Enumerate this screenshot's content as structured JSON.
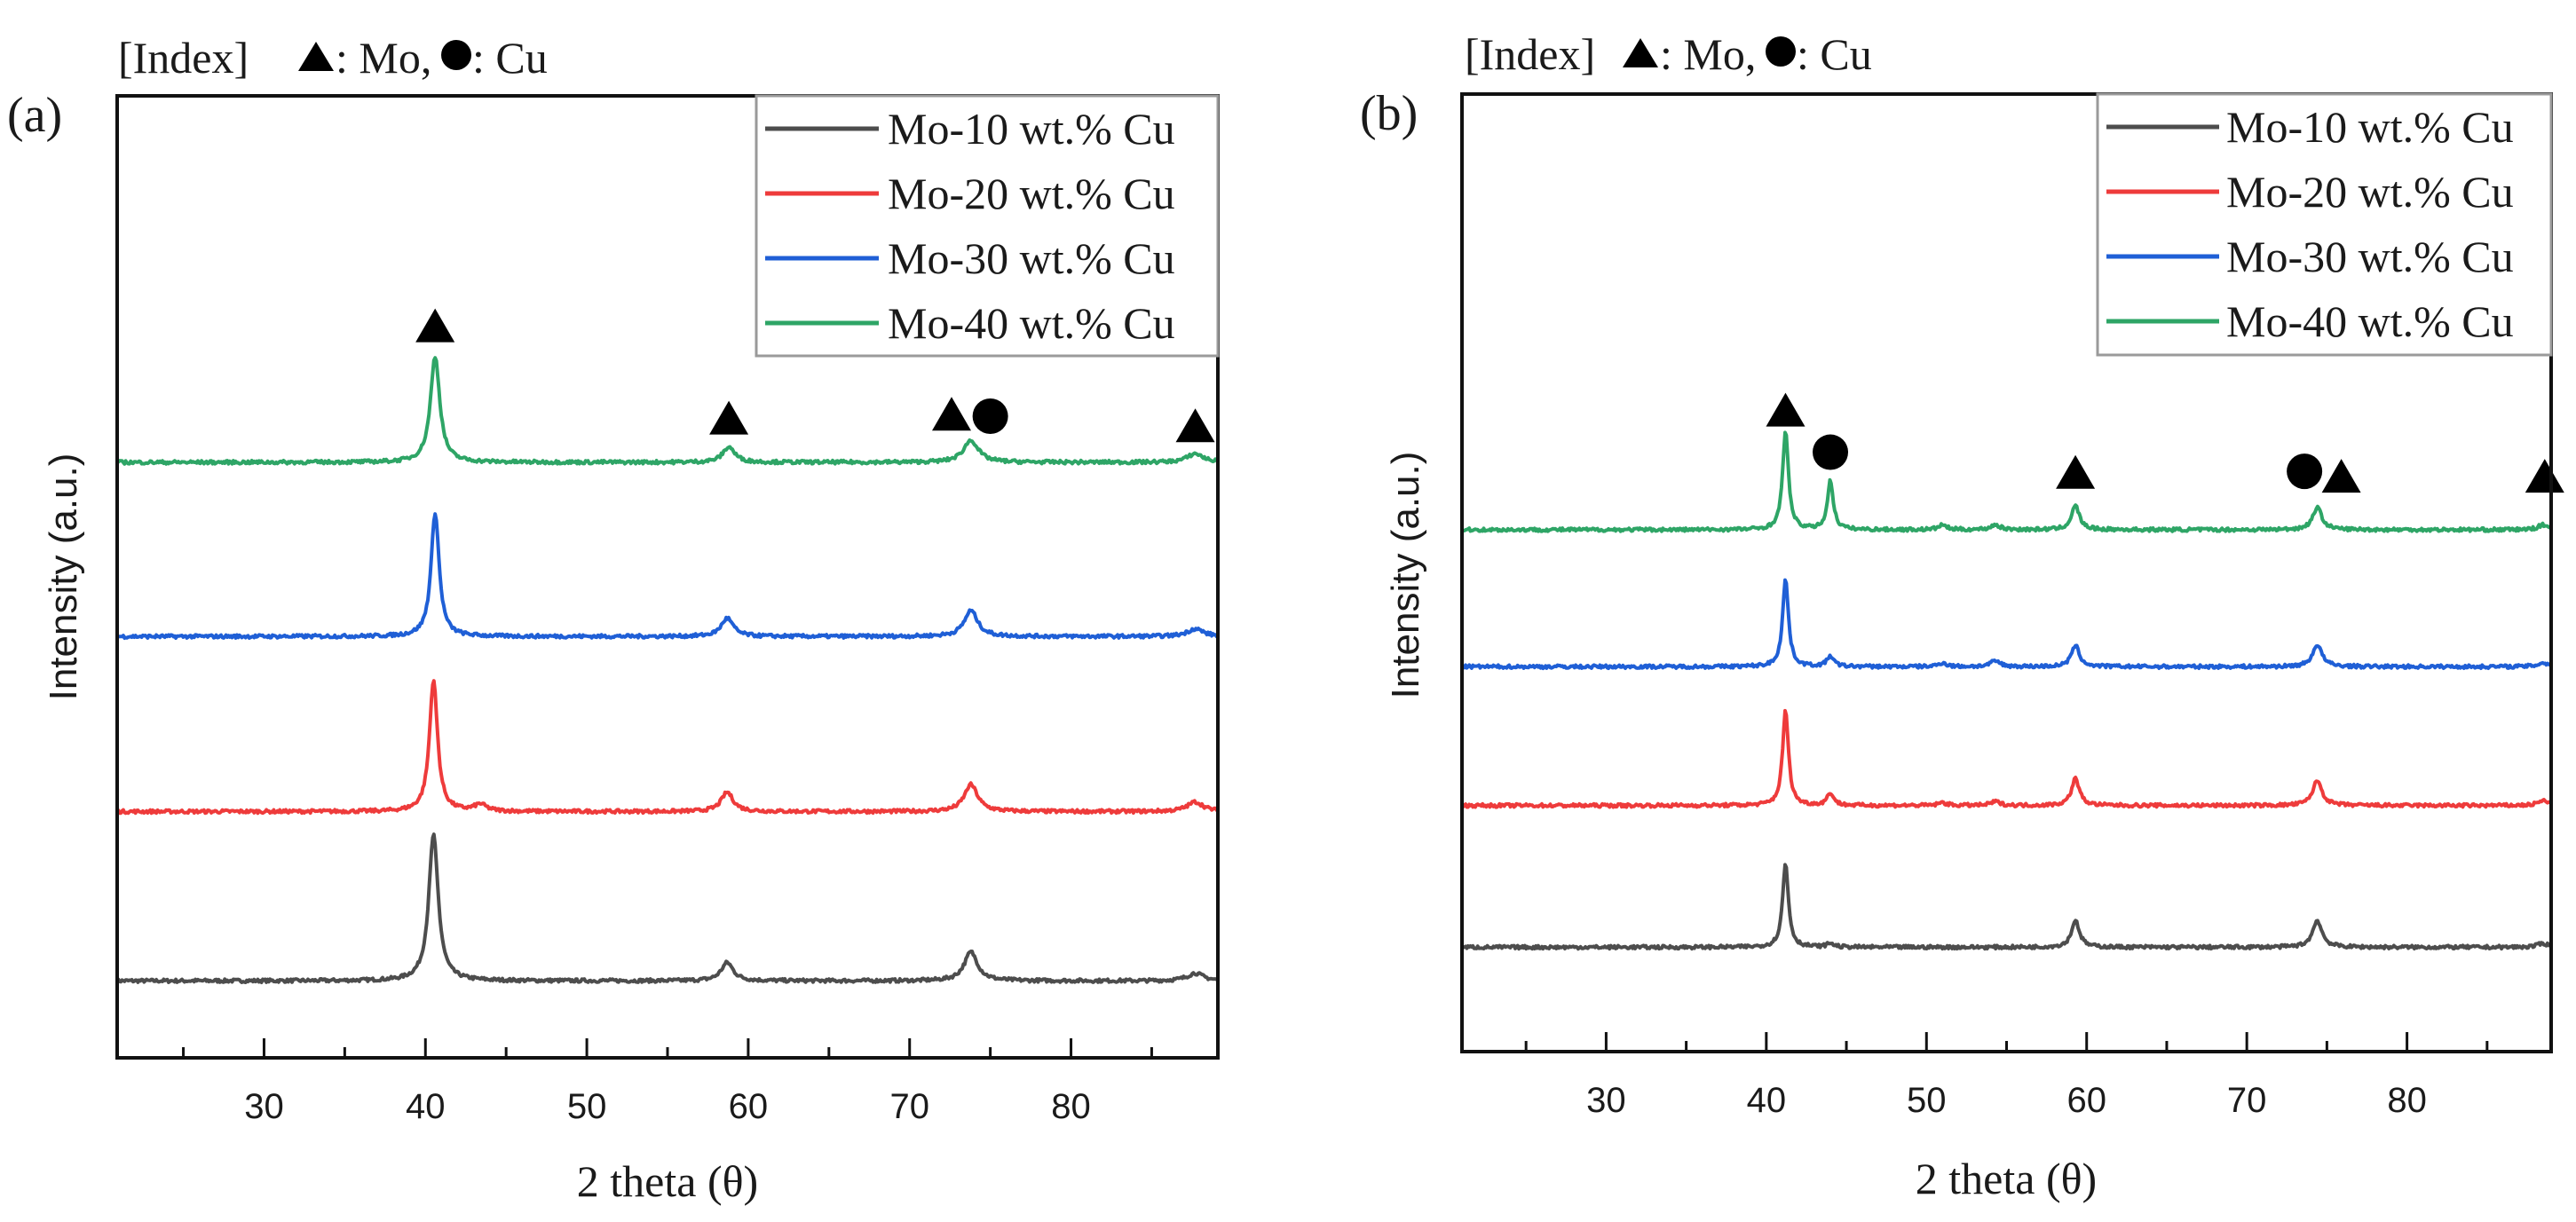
{
  "chart_data": [
    {
      "type": "line",
      "panel_label": "(a)",
      "index_note": {
        "prefix": "[Index]",
        "triangle_label": ": Mo,",
        "circle_label": ": Cu"
      },
      "title": "",
      "xlabel": "2 theta (θ)",
      "ylabel": "Intensity (a.u.)",
      "xlim": [
        20.9,
        89.1
      ],
      "ylim": [
        0,
        100
      ],
      "xticks": [
        30,
        40,
        50,
        60,
        70,
        80
      ],
      "xtick_labels": [
        "30",
        "40",
        "50",
        "60",
        "70",
        "80"
      ],
      "minor_xticks": [
        25,
        35,
        45,
        55,
        65,
        75,
        85
      ],
      "yticks_shown": false,
      "grid": false,
      "legend_position": "top-right",
      "series": [
        {
          "name": "Mo-10 wt.% Cu",
          "color": "#4d4d4d",
          "baseline": 8.0,
          "peaks": [
            {
              "x": 40.5,
              "y": 23.2,
              "w": 0.35
            },
            {
              "x": 58.7,
              "y": 9.9,
              "w": 0.45
            },
            {
              "x": 73.8,
              "y": 11.0,
              "w": 0.5
            },
            {
              "x": 87.7,
              "y": 8.8,
              "w": 0.6
            }
          ]
        },
        {
          "name": "Mo-20 wt.% Cu",
          "color": "#ee3b3b",
          "baseline": 25.6,
          "peaks": [
            {
              "x": 40.5,
              "y": 39.3,
              "w": 0.3
            },
            {
              "x": 43.4,
              "y": 26.3,
              "w": 0.45
            },
            {
              "x": 58.7,
              "y": 27.6,
              "w": 0.45
            },
            {
              "x": 73.8,
              "y": 28.4,
              "w": 0.5
            },
            {
              "x": 87.7,
              "y": 26.6,
              "w": 0.6
            }
          ]
        },
        {
          "name": "Mo-30 wt.% Cu",
          "color": "#1f5fd6",
          "baseline": 43.8,
          "peaks": [
            {
              "x": 40.6,
              "y": 56.7,
              "w": 0.3
            },
            {
              "x": 58.7,
              "y": 45.7,
              "w": 0.45
            },
            {
              "x": 73.8,
              "y": 46.5,
              "w": 0.5
            },
            {
              "x": 87.7,
              "y": 44.6,
              "w": 0.6
            }
          ]
        },
        {
          "name": "Mo-40 wt.% Cu",
          "color": "#2ea566",
          "baseline": 61.9,
          "peaks": [
            {
              "x": 40.6,
              "y": 72.9,
              "w": 0.35
            },
            {
              "x": 58.8,
              "y": 63.5,
              "w": 0.45
            },
            {
              "x": 73.8,
              "y": 64.2,
              "w": 0.55
            },
            {
              "x": 87.7,
              "y": 62.8,
              "w": 0.6
            }
          ]
        }
      ],
      "annotations": [
        {
          "symbol": "triangle",
          "phase": "Mo",
          "x": 40.6,
          "y": 77.9
        },
        {
          "symbol": "triangle",
          "phase": "Mo",
          "x": 58.8,
          "y": 68.3
        },
        {
          "symbol": "triangle",
          "phase": "Mo",
          "x": 72.6,
          "y": 68.7
        },
        {
          "symbol": "circle",
          "phase": "Cu",
          "x": 75.0,
          "y": 66.7
        },
        {
          "symbol": "triangle",
          "phase": "Mo",
          "x": 87.7,
          "y": 67.5
        }
      ]
    },
    {
      "type": "line",
      "panel_label": "(b)",
      "index_note": {
        "prefix": "[Index]",
        "triangle_label": ": Mo,",
        "circle_label": ": Cu"
      },
      "title": "",
      "xlabel": "2 theta (θ)",
      "ylabel": "Intensity (a.u.)",
      "xlim": [
        21.0,
        89.0
      ],
      "ylim": [
        0,
        100
      ],
      "xticks": [
        30,
        40,
        50,
        60,
        70,
        80
      ],
      "xtick_labels": [
        "30",
        "40",
        "50",
        "60",
        "70",
        "80"
      ],
      "minor_xticks": [
        25,
        35,
        45,
        55,
        65,
        75,
        85
      ],
      "yticks_shown": false,
      "grid": false,
      "legend_position": "top-right",
      "series": [
        {
          "name": "Mo-10 wt.% Cu",
          "color": "#4d4d4d",
          "baseline": 10.9,
          "peaks": [
            {
              "x": 41.2,
              "y": 19.6,
              "w": 0.22
            },
            {
              "x": 44.0,
              "y": 11.3,
              "w": 0.25
            },
            {
              "x": 59.3,
              "y": 13.7,
              "w": 0.3
            },
            {
              "x": 74.4,
              "y": 13.7,
              "w": 0.35
            },
            {
              "x": 88.5,
              "y": 11.3,
              "w": 0.4
            }
          ]
        },
        {
          "name": "Mo-20 wt.% Cu",
          "color": "#ee3b3b",
          "baseline": 25.7,
          "peaks": [
            {
              "x": 41.2,
              "y": 35.6,
              "w": 0.22
            },
            {
              "x": 44.0,
              "y": 27.0,
              "w": 0.25
            },
            {
              "x": 51.0,
              "y": 26.0,
              "w": 0.3
            },
            {
              "x": 54.3,
              "y": 26.1,
              "w": 0.35
            },
            {
              "x": 59.3,
              "y": 28.5,
              "w": 0.3
            },
            {
              "x": 74.4,
              "y": 28.3,
              "w": 0.35
            },
            {
              "x": 88.5,
              "y": 26.2,
              "w": 0.4
            }
          ]
        },
        {
          "name": "Mo-30 wt.% Cu",
          "color": "#1f5fd6",
          "baseline": 40.2,
          "peaks": [
            {
              "x": 41.2,
              "y": 49.3,
              "w": 0.22
            },
            {
              "x": 44.0,
              "y": 41.3,
              "w": 0.25
            },
            {
              "x": 51.0,
              "y": 40.6,
              "w": 0.3
            },
            {
              "x": 54.3,
              "y": 40.8,
              "w": 0.35
            },
            {
              "x": 59.3,
              "y": 42.4,
              "w": 0.3
            },
            {
              "x": 74.4,
              "y": 42.5,
              "w": 0.35
            },
            {
              "x": 88.5,
              "y": 40.6,
              "w": 0.4
            }
          ]
        },
        {
          "name": "Mo-40 wt.% Cu",
          "color": "#2ea566",
          "baseline": 54.5,
          "peaks": [
            {
              "x": 41.2,
              "y": 64.7,
              "w": 0.22
            },
            {
              "x": 44.0,
              "y": 59.6,
              "w": 0.22
            },
            {
              "x": 51.0,
              "y": 55.0,
              "w": 0.3
            },
            {
              "x": 54.3,
              "y": 55.0,
              "w": 0.35
            },
            {
              "x": 59.3,
              "y": 57.0,
              "w": 0.3
            },
            {
              "x": 74.4,
              "y": 56.8,
              "w": 0.35
            },
            {
              "x": 88.5,
              "y": 55.0,
              "w": 0.4
            }
          ]
        }
      ],
      "annotations": [
        {
          "symbol": "triangle",
          "phase": "Mo",
          "x": 41.2,
          "y": 68.8
        },
        {
          "symbol": "circle",
          "phase": "Cu",
          "x": 44.0,
          "y": 62.6
        },
        {
          "symbol": "triangle",
          "phase": "Mo",
          "x": 59.3,
          "y": 62.3
        },
        {
          "symbol": "circle",
          "phase": "Cu",
          "x": 73.6,
          "y": 60.6
        },
        {
          "symbol": "triangle",
          "phase": "Mo",
          "x": 75.9,
          "y": 61.9
        },
        {
          "symbol": "triangle",
          "phase": "Mo",
          "x": 88.6,
          "y": 61.9
        }
      ]
    }
  ]
}
